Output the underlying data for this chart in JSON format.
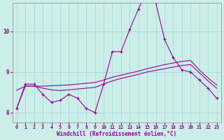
{
  "background_color": "#cceee8",
  "grid_color": "#aadddd",
  "line_color": "#990099",
  "xlabel": "Windchill (Refroidissement éolien,°C)",
  "xlim": [
    -0.5,
    23.5
  ],
  "ylim": [
    7.75,
    10.7
  ],
  "yticks": [
    8,
    9,
    10
  ],
  "xticks": [
    0,
    1,
    2,
    3,
    4,
    5,
    6,
    7,
    8,
    9,
    10,
    11,
    12,
    13,
    14,
    15,
    16,
    17,
    18,
    19,
    20,
    21,
    22,
    23
  ],
  "zigzag_x": [
    0,
    1,
    2,
    3,
    4,
    5,
    6,
    7,
    8,
    9,
    10,
    11,
    12,
    13,
    14,
    15,
    16,
    17,
    18,
    19,
    20,
    21,
    22,
    23
  ],
  "zigzag_y": [
    8.1,
    8.7,
    8.7,
    8.45,
    8.25,
    8.3,
    8.45,
    8.35,
    8.1,
    8.0,
    8.7,
    9.5,
    9.5,
    10.05,
    10.55,
    11.0,
    10.7,
    9.8,
    9.35,
    9.05,
    9.0,
    8.8,
    8.6,
    8.35
  ],
  "line_upper_x": [
    0,
    1,
    2,
    3,
    4,
    5,
    6,
    7,
    8,
    9,
    10,
    11,
    12,
    13,
    14,
    15,
    16,
    17,
    18,
    19,
    20,
    21,
    22,
    23
  ],
  "line_upper_y": [
    8.55,
    8.65,
    8.65,
    8.65,
    8.66,
    8.67,
    8.68,
    8.7,
    8.72,
    8.74,
    8.8,
    8.87,
    8.92,
    8.97,
    9.02,
    9.08,
    9.13,
    9.18,
    9.22,
    9.26,
    9.28,
    9.05,
    8.85,
    8.68
  ],
  "line_lower_x": [
    0,
    1,
    2,
    3,
    4,
    5,
    6,
    7,
    8,
    9,
    10,
    11,
    12,
    13,
    14,
    15,
    16,
    17,
    18,
    19,
    20,
    21,
    22,
    23
  ],
  "line_lower_y": [
    8.1,
    8.65,
    8.65,
    8.6,
    8.56,
    8.54,
    8.56,
    8.58,
    8.6,
    8.62,
    8.7,
    8.78,
    8.84,
    8.89,
    8.94,
    9.0,
    9.04,
    9.08,
    9.12,
    9.16,
    9.18,
    8.98,
    8.78,
    8.6
  ]
}
